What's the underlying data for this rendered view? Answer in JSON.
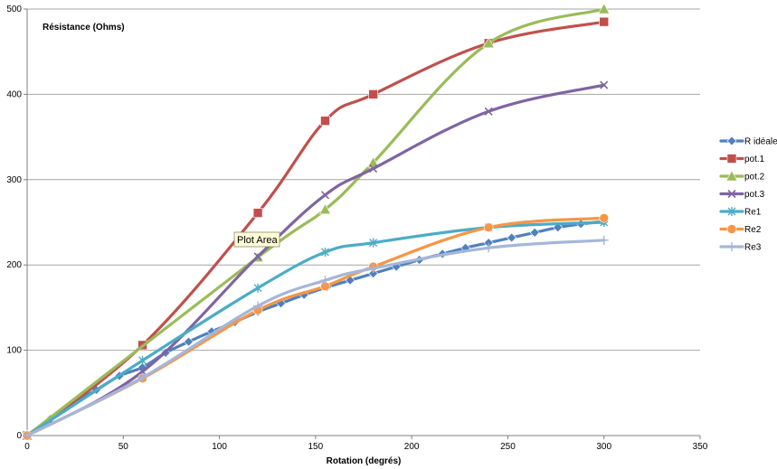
{
  "chart_data": {
    "type": "line",
    "title": "",
    "ylabel": "Résistance (Ohms)",
    "xlabel": "Rotation (degrés)",
    "xlim": [
      0,
      350
    ],
    "ylim": [
      0,
      500
    ],
    "x_ticks": [
      0,
      50,
      100,
      150,
      200,
      250,
      300,
      350
    ],
    "y_ticks": [
      0,
      100,
      200,
      300,
      400,
      500
    ],
    "grid": "horizontal",
    "legend_position": "right",
    "series": [
      {
        "name": "R idéale",
        "color": "#4f81bd",
        "marker": "diamond",
        "points": [
          [
            0,
            0
          ],
          [
            12,
            19.2
          ],
          [
            24,
            38.5
          ],
          [
            36,
            53.5
          ],
          [
            48,
            70
          ],
          [
            60,
            80
          ],
          [
            72,
            97
          ],
          [
            84,
            110
          ],
          [
            96,
            122
          ],
          [
            108,
            133
          ],
          [
            120,
            145
          ],
          [
            132,
            155
          ],
          [
            144,
            165
          ],
          [
            156,
            174
          ],
          [
            168,
            182
          ],
          [
            180,
            190
          ],
          [
            192,
            198
          ],
          [
            204,
            206
          ],
          [
            216,
            213
          ],
          [
            228,
            220
          ],
          [
            240,
            226
          ],
          [
            252,
            232
          ],
          [
            264,
            238
          ],
          [
            276,
            244
          ],
          [
            288,
            248
          ],
          [
            300,
            251
          ]
        ]
      },
      {
        "name": "pot.1",
        "color": "#c0504d",
        "marker": "square",
        "points": [
          [
            0,
            0
          ],
          [
            60,
            106
          ],
          [
            120,
            261
          ],
          [
            155,
            369
          ],
          [
            180,
            400
          ],
          [
            240,
            460
          ],
          [
            300,
            485
          ]
        ]
      },
      {
        "name": "pot.2",
        "color": "#9bbb59",
        "marker": "triangle",
        "points": [
          [
            0,
            0
          ],
          [
            120,
            209
          ],
          [
            155,
            265
          ],
          [
            180,
            320
          ],
          [
            240,
            460
          ],
          [
            300,
            500
          ]
        ]
      },
      {
        "name": "pot.3",
        "color": "#8064a2",
        "marker": "x",
        "points": [
          [
            0,
            0
          ],
          [
            60,
            75
          ],
          [
            120,
            210
          ],
          [
            155,
            282
          ],
          [
            180,
            313
          ],
          [
            240,
            380
          ],
          [
            300,
            411
          ]
        ]
      },
      {
        "name": "Re1",
        "color": "#4bacc6",
        "marker": "star",
        "points": [
          [
            0,
            0
          ],
          [
            60,
            88
          ],
          [
            120,
            173
          ],
          [
            155,
            215
          ],
          [
            180,
            226
          ],
          [
            240,
            244
          ],
          [
            300,
            250
          ]
        ]
      },
      {
        "name": "Re2",
        "color": "#f79646",
        "marker": "circle",
        "points": [
          [
            0,
            0
          ],
          [
            60,
            67
          ],
          [
            120,
            147
          ],
          [
            155,
            175
          ],
          [
            180,
            198
          ],
          [
            240,
            244
          ],
          [
            300,
            255
          ]
        ]
      },
      {
        "name": "Re3",
        "color": "#a5b6d9",
        "marker": "plus",
        "points": [
          [
            0,
            0
          ],
          [
            60,
            68
          ],
          [
            120,
            152
          ],
          [
            155,
            182
          ],
          [
            180,
            196
          ],
          [
            240,
            220
          ],
          [
            300,
            229
          ]
        ]
      }
    ]
  },
  "tooltip": {
    "label": "Plot Area"
  }
}
